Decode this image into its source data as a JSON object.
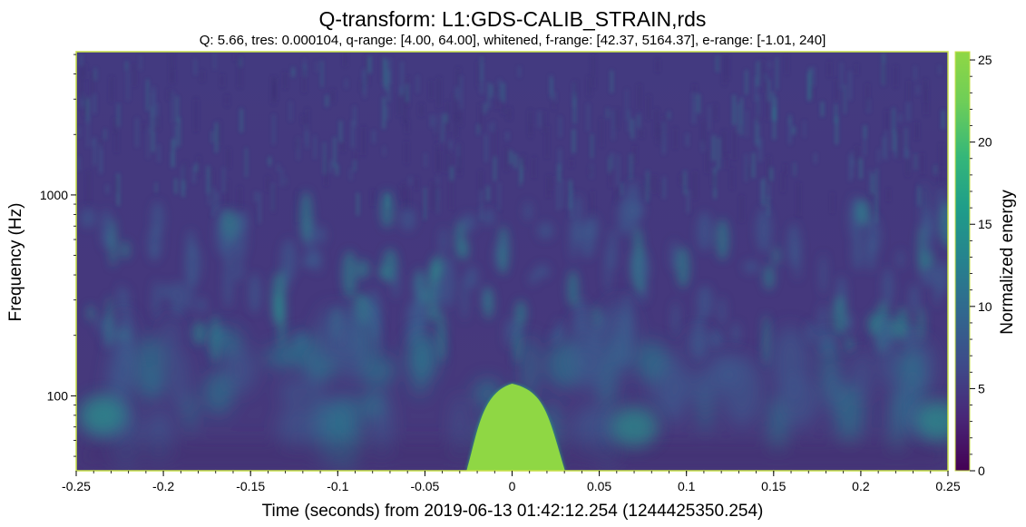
{
  "chart_data": {
    "type": "heatmap",
    "title": "Q-transform: L1:GDS-CALIB_STRAIN,rds",
    "subtitle": "Q: 5.66, tres: 0.000104, q-range: [4.00, 64.00], whitened, f-range: [42.37, 5164.37], e-range: [-1.01, 240]",
    "xlabel": "Time (seconds) from 2019-06-13 01:42:12.254 (1244425350.254)",
    "ylabel": "Frequency (Hz)",
    "colorbar_label": "Normalized energy",
    "x_ticks": [
      "-0.25",
      "-0.2",
      "-0.15",
      "-0.1",
      "-0.05",
      "0",
      "0.05",
      "0.1",
      "0.15",
      "0.2",
      "0.25"
    ],
    "x_tick_values": [
      -0.25,
      -0.2,
      -0.15,
      -0.1,
      -0.05,
      0,
      0.05,
      0.1,
      0.15,
      0.2,
      0.25
    ],
    "y_ticks": [
      "100",
      "1000"
    ],
    "y_tick_values": [
      100,
      1000
    ],
    "colorbar_ticks": [
      "0",
      "5",
      "10",
      "15",
      "20",
      "25"
    ],
    "colorbar_tick_values": [
      0,
      5,
      10,
      15,
      20,
      25
    ],
    "xlim": [
      -0.25,
      0.25
    ],
    "ylim": [
      42.37,
      5164.37
    ],
    "y_scale": "log",
    "clim": [
      0,
      25.5
    ],
    "colormap": "viridis",
    "colors": {
      "background": "#44357c",
      "cbar_low": "#440154",
      "cbar_mid": "#21918c",
      "cbar_high": "#8fd744",
      "frame": "#c8e04a"
    },
    "features": [
      {
        "label": "signal blob",
        "t_center": 0.0,
        "t_halfwidth": 0.022,
        "f_peak": 115,
        "energy": 25.5
      },
      {
        "label": "low-freq band",
        "t_center": -0.235,
        "f": 80,
        "energy": 9
      },
      {
        "label": "low-freq band",
        "t_center": 0.07,
        "f": 70,
        "energy": 8
      },
      {
        "label": "low-freq band",
        "t_center": 0.245,
        "f": 75,
        "energy": 8
      }
    ]
  }
}
